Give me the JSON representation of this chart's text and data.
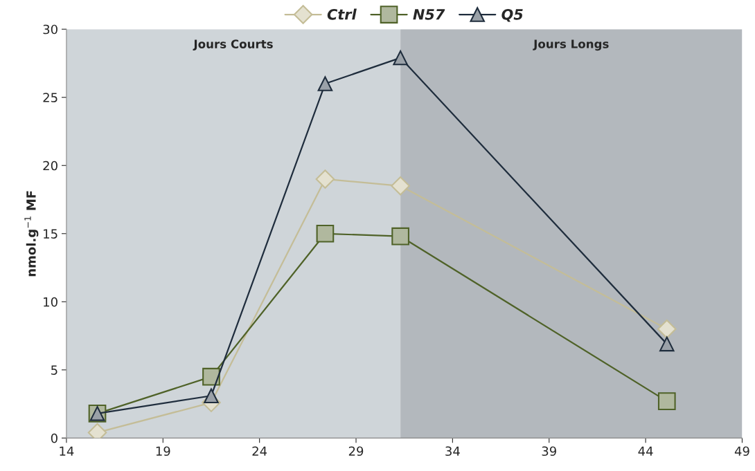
{
  "chart_data": {
    "type": "line",
    "x": [
      15.6,
      21.5,
      27.4,
      31.3,
      45.1
    ],
    "series": [
      {
        "name": "Ctrl",
        "color": "#c4bd97",
        "marker": "diamond",
        "values": [
          0.4,
          2.6,
          19.0,
          18.5,
          8.0
        ]
      },
      {
        "name": "N57",
        "color": "#4f6228",
        "marker": "square",
        "values": [
          1.8,
          4.5,
          15.0,
          14.8,
          2.7
        ]
      },
      {
        "name": "Q5",
        "color": "#1f2d3d",
        "marker": "triangle",
        "values": [
          1.8,
          3.1,
          26.0,
          27.9,
          6.9
        ]
      }
    ],
    "ylabel": "nmol.g$^{−1}$ MF",
    "xlim": [
      14,
      49
    ],
    "xticks": [
      14,
      19,
      24,
      29,
      34,
      39,
      44,
      49
    ],
    "ylim": [
      0,
      30
    ],
    "yticks": [
      0,
      5,
      10,
      15,
      20,
      25,
      30
    ],
    "bands": [
      {
        "axis": "x",
        "from": 14,
        "to": 31.3,
        "label": "Jours Courts",
        "color": "#cfd5d9"
      },
      {
        "axis": "x",
        "from": 31.3,
        "to": 49,
        "label": "Jours Longs",
        "color": "#b3b8bd"
      }
    ],
    "grid": false,
    "legend": "top",
    "line_style": "solid"
  }
}
